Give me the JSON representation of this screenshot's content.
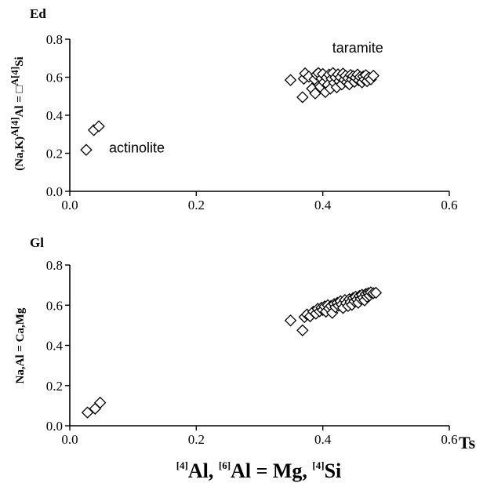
{
  "figure": {
    "xlabel": {
      "sup1": "[4]",
      "p1": "Al, ",
      "sup2": "[6]",
      "p2": "Al = Mg, ",
      "sup3": "[4]",
      "p3": "Si"
    },
    "ts_label": "Ts"
  },
  "chart_data": [
    {
      "type": "scatter",
      "corner_label": "Ed",
      "ylabel": "(Na,K)^A[4]Al = □^A[4]Si",
      "ylabel_parts": {
        "a": "(Na,K)",
        "sup1": "A[4]",
        "b": "Al = ",
        "box": "□",
        "sup2": "A[4]",
        "c": "Si"
      },
      "xlim": [
        0.0,
        0.6
      ],
      "ylim": [
        0.0,
        0.8
      ],
      "x_ticks": [
        "0.0",
        "0.2",
        "0.4",
        "0.6"
      ],
      "y_ticks": [
        "0.0",
        "0.2",
        "0.4",
        "0.6",
        "0.8"
      ],
      "marker": "open-diamond",
      "annotations": [
        {
          "text": "taramite",
          "x": 0.415,
          "y": 0.73
        },
        {
          "text": "actinolite",
          "x": 0.062,
          "y": 0.205
        }
      ],
      "points": [
        [
          0.026,
          0.218
        ],
        [
          0.038,
          0.322
        ],
        [
          0.046,
          0.342
        ],
        [
          0.349,
          0.585
        ],
        [
          0.368,
          0.495
        ],
        [
          0.37,
          0.592
        ],
        [
          0.372,
          0.62
        ],
        [
          0.378,
          0.603
        ],
        [
          0.383,
          0.54
        ],
        [
          0.387,
          0.589
        ],
        [
          0.388,
          0.515
        ],
        [
          0.39,
          0.614
        ],
        [
          0.393,
          0.622
        ],
        [
          0.396,
          0.55
        ],
        [
          0.398,
          0.593
        ],
        [
          0.4,
          0.617
        ],
        [
          0.402,
          0.574
        ],
        [
          0.404,
          0.522
        ],
        [
          0.406,
          0.598
        ],
        [
          0.408,
          0.56
        ],
        [
          0.41,
          0.614
        ],
        [
          0.412,
          0.54
        ],
        [
          0.414,
          0.592
        ],
        [
          0.416,
          0.622
        ],
        [
          0.418,
          0.571
        ],
        [
          0.42,
          0.599
        ],
        [
          0.422,
          0.547
        ],
        [
          0.424,
          0.615
        ],
        [
          0.426,
          0.58
        ],
        [
          0.428,
          0.6
        ],
        [
          0.43,
          0.562
        ],
        [
          0.432,
          0.619
        ],
        [
          0.434,
          0.586
        ],
        [
          0.436,
          0.608
        ],
        [
          0.438,
          0.574
        ],
        [
          0.44,
          0.595
        ],
        [
          0.442,
          0.563
        ],
        [
          0.444,
          0.612
        ],
        [
          0.446,
          0.588
        ],
        [
          0.448,
          0.606
        ],
        [
          0.45,
          0.576
        ],
        [
          0.452,
          0.598
        ],
        [
          0.455,
          0.614
        ],
        [
          0.457,
          0.584
        ],
        [
          0.459,
          0.602
        ],
        [
          0.462,
          0.573
        ],
        [
          0.464,
          0.604
        ],
        [
          0.466,
          0.588
        ],
        [
          0.468,
          0.611
        ],
        [
          0.47,
          0.579
        ],
        [
          0.473,
          0.598
        ],
        [
          0.476,
          0.589
        ],
        [
          0.48,
          0.608
        ]
      ]
    },
    {
      "type": "scatter",
      "corner_label": "Gl",
      "ylabel": "Na,Al = Ca,Mg",
      "xlim": [
        0.0,
        0.6
      ],
      "ylim": [
        0.0,
        0.8
      ],
      "x_ticks": [
        "0.0",
        "0.2",
        "0.4",
        "0.6"
      ],
      "y_ticks": [
        "0.0",
        "0.2",
        "0.4",
        "0.6",
        "0.8"
      ],
      "marker": "open-diamond",
      "annotations": [],
      "points": [
        [
          0.028,
          0.066
        ],
        [
          0.04,
          0.085
        ],
        [
          0.048,
          0.115
        ],
        [
          0.349,
          0.524
        ],
        [
          0.368,
          0.475
        ],
        [
          0.371,
          0.541
        ],
        [
          0.375,
          0.554
        ],
        [
          0.38,
          0.545
        ],
        [
          0.385,
          0.568
        ],
        [
          0.389,
          0.558
        ],
        [
          0.392,
          0.582
        ],
        [
          0.395,
          0.57
        ],
        [
          0.398,
          0.588
        ],
        [
          0.4,
          0.576
        ],
        [
          0.403,
          0.594
        ],
        [
          0.405,
          0.568
        ],
        [
          0.408,
          0.6
        ],
        [
          0.41,
          0.584
        ],
        [
          0.413,
          0.596
        ],
        [
          0.415,
          0.562
        ],
        [
          0.418,
          0.606
        ],
        [
          0.42,
          0.59
        ],
        [
          0.423,
          0.612
        ],
        [
          0.425,
          0.598
        ],
        [
          0.428,
          0.62
        ],
        [
          0.43,
          0.604
        ],
        [
          0.432,
          0.586
        ],
        [
          0.435,
          0.626
        ],
        [
          0.437,
          0.61
        ],
        [
          0.44,
          0.596
        ],
        [
          0.442,
          0.63
        ],
        [
          0.444,
          0.616
        ],
        [
          0.446,
          0.602
        ],
        [
          0.448,
          0.636
        ],
        [
          0.45,
          0.62
        ],
        [
          0.452,
          0.642
        ],
        [
          0.454,
          0.628
        ],
        [
          0.456,
          0.612
        ],
        [
          0.458,
          0.646
        ],
        [
          0.46,
          0.632
        ],
        [
          0.462,
          0.652
        ],
        [
          0.464,
          0.638
        ],
        [
          0.466,
          0.624
        ],
        [
          0.468,
          0.656
        ],
        [
          0.47,
          0.642
        ],
        [
          0.472,
          0.66
        ],
        [
          0.474,
          0.648
        ],
        [
          0.476,
          0.664
        ],
        [
          0.48,
          0.66
        ],
        [
          0.484,
          0.662
        ]
      ]
    }
  ]
}
